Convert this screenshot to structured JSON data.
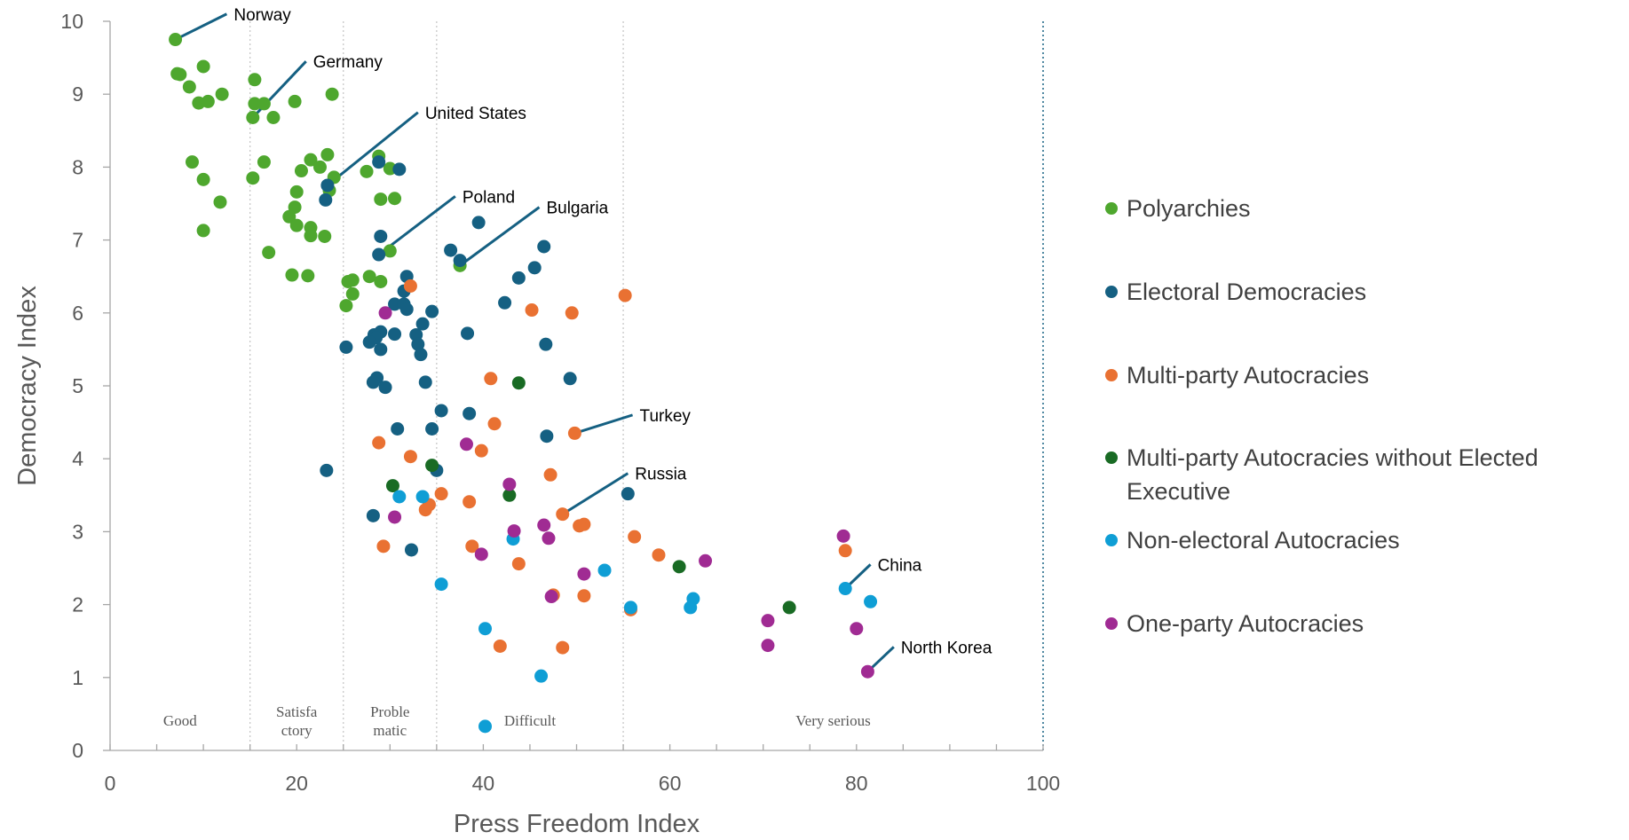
{
  "chart_data": {
    "type": "scatter",
    "xlabel": "Press Freedom Index",
    "ylabel": "Democracy Index",
    "xlim": [
      0,
      100
    ],
    "ylim": [
      0,
      10
    ],
    "x_ticks": [
      "0",
      "20",
      "40",
      "60",
      "80",
      "100"
    ],
    "y_ticks": [
      "0",
      "1",
      "2",
      "3",
      "4",
      "5",
      "6",
      "7",
      "8",
      "9",
      "10"
    ],
    "grid": "vertical dotted lines at zone boundaries",
    "legend_position": "right",
    "zones": [
      {
        "label_lines": [
          "Good"
        ],
        "x_center": 7.5
      },
      {
        "label_lines": [
          "Satisfa",
          "ctory"
        ],
        "x_center": 20
      },
      {
        "label_lines": [
          "Proble",
          "matic"
        ],
        "x_center": 30
      },
      {
        "label_lines": [
          "Difficult"
        ],
        "x_center": 45
      },
      {
        "label_lines": [
          "Very serious"
        ],
        "x_center": 77.5
      }
    ],
    "zone_boundaries": [
      15,
      25,
      35,
      55
    ],
    "series": [
      {
        "name": "Polyarchies",
        "color": "#4ea72e",
        "points": [
          [
            7,
            9.75
          ],
          [
            7.2,
            9.28
          ],
          [
            7.5,
            9.27
          ],
          [
            8.5,
            9.1
          ],
          [
            9.5,
            8.88
          ],
          [
            10,
            9.38
          ],
          [
            10.5,
            8.9
          ],
          [
            12,
            9.0
          ],
          [
            15.5,
            9.2
          ],
          [
            15.5,
            8.87
          ],
          [
            16.5,
            8.87
          ],
          [
            15.3,
            8.68
          ],
          [
            17.5,
            8.68
          ],
          [
            19.8,
            8.9
          ],
          [
            23.8,
            9.0
          ],
          [
            8.8,
            8.07
          ],
          [
            10,
            7.83
          ],
          [
            11.8,
            7.52
          ],
          [
            10,
            7.13
          ],
          [
            15.3,
            7.85
          ],
          [
            16.5,
            8.07
          ],
          [
            21.5,
            8.1
          ],
          [
            23.3,
            8.17
          ],
          [
            22.5,
            8.0
          ],
          [
            20.5,
            7.95
          ],
          [
            24,
            7.86
          ],
          [
            23.5,
            7.68
          ],
          [
            20,
            7.66
          ],
          [
            19.8,
            7.45
          ],
          [
            19.2,
            7.32
          ],
          [
            20,
            7.2
          ],
          [
            21.5,
            7.17
          ],
          [
            21.5,
            7.06
          ],
          [
            23,
            7.05
          ],
          [
            17,
            6.83
          ],
          [
            19.5,
            6.52
          ],
          [
            21.2,
            6.51
          ],
          [
            28.8,
            8.15
          ],
          [
            27.5,
            7.94
          ],
          [
            30,
            7.98
          ],
          [
            29,
            7.56
          ],
          [
            30.5,
            7.57
          ],
          [
            30,
            6.85
          ],
          [
            25.5,
            6.43
          ],
          [
            26,
            6.45
          ],
          [
            27.8,
            6.5
          ],
          [
            29,
            6.43
          ],
          [
            26,
            6.26
          ],
          [
            25.3,
            6.1
          ],
          [
            37.5,
            6.65
          ]
        ]
      },
      {
        "name": "Electoral Democracies",
        "color": "#156082",
        "points": [
          [
            23.3,
            7.75
          ],
          [
            23.1,
            7.55
          ],
          [
            28.8,
            8.07
          ],
          [
            31,
            7.97
          ],
          [
            29,
            7.05
          ],
          [
            28.8,
            6.8
          ],
          [
            39.5,
            7.24
          ],
          [
            36.5,
            6.86
          ],
          [
            37.5,
            6.72
          ],
          [
            46.5,
            6.91
          ],
          [
            45.5,
            6.62
          ],
          [
            43.8,
            6.48
          ],
          [
            31.8,
            6.5
          ],
          [
            31.5,
            6.3
          ],
          [
            30.5,
            6.12
          ],
          [
            31.5,
            6.12
          ],
          [
            31.8,
            6.05
          ],
          [
            34.5,
            6.02
          ],
          [
            42.3,
            6.14
          ],
          [
            28.3,
            5.7
          ],
          [
            29,
            5.74
          ],
          [
            28.5,
            5.66
          ],
          [
            27.8,
            5.6
          ],
          [
            30.5,
            5.71
          ],
          [
            33.5,
            5.85
          ],
          [
            32.8,
            5.7
          ],
          [
            33,
            5.57
          ],
          [
            33.3,
            5.43
          ],
          [
            38.3,
            5.72
          ],
          [
            25.3,
            5.53
          ],
          [
            29,
            5.5
          ],
          [
            46.7,
            5.57
          ],
          [
            28.6,
            5.11
          ],
          [
            28.2,
            5.05
          ],
          [
            29.5,
            4.98
          ],
          [
            33.8,
            5.05
          ],
          [
            49.3,
            5.1
          ],
          [
            35.5,
            4.66
          ],
          [
            38.5,
            4.62
          ],
          [
            34.5,
            4.41
          ],
          [
            30.8,
            4.41
          ],
          [
            46.8,
            4.31
          ],
          [
            23.2,
            3.84
          ],
          [
            35,
            3.84
          ],
          [
            28.2,
            3.22
          ],
          [
            32.3,
            2.75
          ],
          [
            55.5,
            3.52
          ]
        ]
      },
      {
        "name": "Multi-party Autocracies",
        "color": "#e97132",
        "points": [
          [
            32.2,
            6.37
          ],
          [
            55.2,
            6.24
          ],
          [
            45.2,
            6.04
          ],
          [
            49.5,
            6.0
          ],
          [
            40.8,
            5.1
          ],
          [
            41.2,
            4.48
          ],
          [
            49.8,
            4.35
          ],
          [
            28.8,
            4.22
          ],
          [
            39.8,
            4.11
          ],
          [
            32.2,
            4.03
          ],
          [
            47.2,
            3.78
          ],
          [
            35.5,
            3.52
          ],
          [
            34.2,
            3.37
          ],
          [
            33.8,
            3.3
          ],
          [
            38.5,
            3.41
          ],
          [
            48.5,
            3.24
          ],
          [
            50.8,
            3.1
          ],
          [
            50.3,
            3.08
          ],
          [
            29.3,
            2.8
          ],
          [
            38.8,
            2.8
          ],
          [
            43.8,
            2.56
          ],
          [
            56.2,
            2.93
          ],
          [
            58.8,
            2.68
          ],
          [
            47.5,
            2.13
          ],
          [
            50.8,
            2.12
          ],
          [
            55.8,
            1.93
          ],
          [
            78.8,
            2.74
          ],
          [
            41.8,
            1.43
          ],
          [
            48.5,
            1.41
          ]
        ]
      },
      {
        "name": "Multi-party Autocracies without Elected Executive",
        "color": "#196b24",
        "points": [
          [
            43.8,
            5.04
          ],
          [
            30.3,
            3.63
          ],
          [
            34.5,
            3.91
          ],
          [
            42.8,
            3.5
          ],
          [
            61,
            2.52
          ],
          [
            72.8,
            1.96
          ]
        ]
      },
      {
        "name": "Non-electoral Autocracies",
        "color": "#0f9ed5",
        "points": [
          [
            31,
            3.48
          ],
          [
            33.5,
            3.48
          ],
          [
            43.2,
            2.9
          ],
          [
            53,
            2.47
          ],
          [
            35.5,
            2.28
          ],
          [
            55.8,
            1.96
          ],
          [
            62.5,
            2.08
          ],
          [
            62.2,
            1.96
          ],
          [
            40.2,
            1.67
          ],
          [
            46.2,
            1.02
          ],
          [
            40.2,
            0.33
          ],
          [
            78.8,
            2.22
          ],
          [
            81.5,
            2.04
          ]
        ]
      },
      {
        "name": "One-party Autocracies",
        "color": "#a02b93",
        "points": [
          [
            29.5,
            6.0
          ],
          [
            38.2,
            4.2
          ],
          [
            42.8,
            3.65
          ],
          [
            30.5,
            3.2
          ],
          [
            43.3,
            3.01
          ],
          [
            46.5,
            3.09
          ],
          [
            47,
            2.91
          ],
          [
            39.8,
            2.69
          ],
          [
            50.8,
            2.42
          ],
          [
            47.3,
            2.11
          ],
          [
            63.8,
            2.6
          ],
          [
            70.5,
            1.78
          ],
          [
            70.5,
            1.44
          ],
          [
            78.6,
            2.94
          ],
          [
            80,
            1.67
          ],
          [
            81.2,
            1.08
          ]
        ]
      }
    ],
    "annotations": [
      {
        "label": "Norway",
        "point": [
          7,
          9.75
        ],
        "line_end": [
          12.5,
          10.1
        ]
      },
      {
        "label": "Germany",
        "point": [
          15.3,
          8.68
        ],
        "line_end": [
          21,
          9.45
        ]
      },
      {
        "label": "United States",
        "point": [
          23.3,
          7.75
        ],
        "line_end": [
          33,
          8.75
        ]
      },
      {
        "label": "Poland",
        "point": [
          28.8,
          6.8
        ],
        "line_end": [
          37,
          7.6
        ]
      },
      {
        "label": "Bulgaria",
        "point": [
          37.5,
          6.65
        ],
        "line_end": [
          46,
          7.45
        ]
      },
      {
        "label": "Turkey",
        "point": [
          49.8,
          4.35
        ],
        "line_end": [
          56,
          4.6
        ]
      },
      {
        "label": "Russia",
        "point": [
          48.5,
          3.24
        ],
        "line_end": [
          55.5,
          3.8
        ]
      },
      {
        "label": "China",
        "point": [
          78.8,
          2.22
        ],
        "line_end": [
          81.5,
          2.55
        ]
      },
      {
        "label": "North Korea",
        "point": [
          81.2,
          1.08
        ],
        "line_end": [
          84,
          1.42
        ]
      }
    ]
  }
}
